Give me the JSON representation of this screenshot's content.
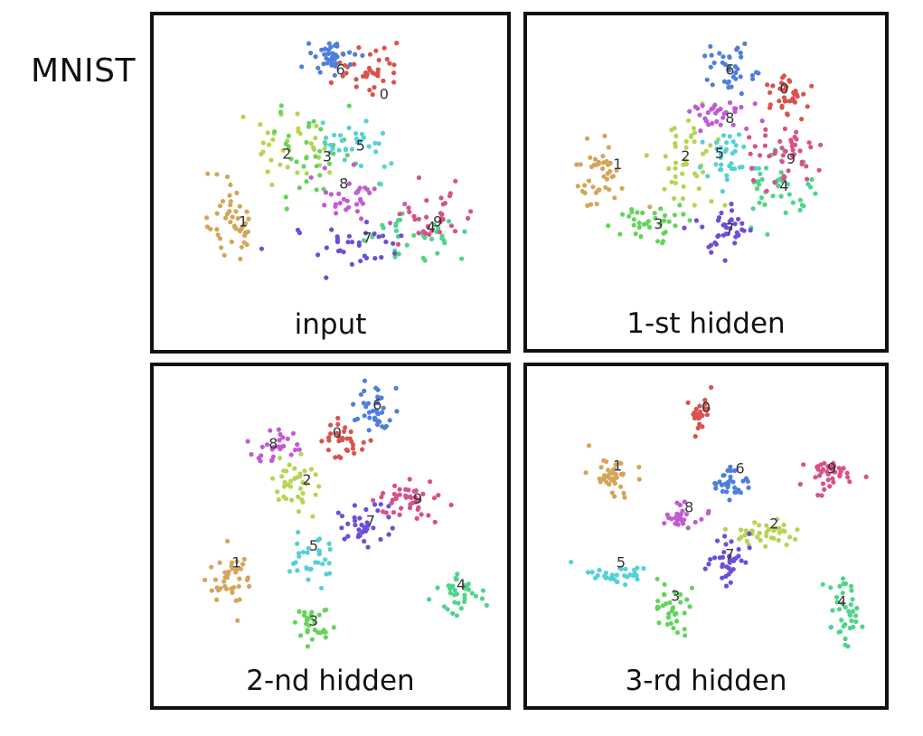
{
  "figure": {
    "title": "MNIST"
  },
  "palette": {
    "0": "#d9534f",
    "1": "#d4a55a",
    "2": "#b5d453",
    "3": "#63d45a",
    "4": "#4fd48a",
    "5": "#55d0d6",
    "6": "#4f7fd9",
    "7": "#6c4fd4",
    "8": "#c25ad4",
    "9": "#d9508a"
  },
  "chart_data": [
    {
      "type": "scatter",
      "title": "input",
      "xlim": [
        0,
        100
      ],
      "ylim": [
        0,
        100
      ],
      "clusters": [
        {
          "label": "0",
          "center": [
            62,
            17
          ],
          "spread": [
            6,
            5
          ],
          "n": 36
        },
        {
          "label": "1",
          "center": [
            21,
            72
          ],
          "spread": [
            4,
            9
          ],
          "n": 45
        },
        {
          "label": "2",
          "center": [
            37,
            45
          ],
          "spread": [
            7,
            7
          ],
          "n": 34
        },
        {
          "label": "3",
          "center": [
            45,
            46
          ],
          "spread": [
            8,
            9
          ],
          "n": 34
        },
        {
          "label": "4",
          "center": [
            77,
            78
          ],
          "spread": [
            10,
            5
          ],
          "n": 34
        },
        {
          "label": "5",
          "center": [
            57,
            43
          ],
          "spread": [
            6,
            6
          ],
          "n": 32
        },
        {
          "label": "6",
          "center": [
            50,
            11
          ],
          "spread": [
            5,
            5
          ],
          "n": 38
        },
        {
          "label": "7",
          "center": [
            57,
            81
          ],
          "spread": [
            10,
            5
          ],
          "n": 34
        },
        {
          "label": "8",
          "center": [
            55,
            63
          ],
          "spread": [
            8,
            6
          ],
          "n": 32
        },
        {
          "label": "9",
          "center": [
            82,
            71
          ],
          "spread": [
            6,
            6
          ],
          "n": 32
        }
      ],
      "labels": [
        {
          "text": "0",
          "pos": [
            66,
            26
          ]
        },
        {
          "text": "1",
          "pos": [
            24,
            73
          ]
        },
        {
          "text": "2",
          "pos": [
            37,
            48
          ]
        },
        {
          "text": "3",
          "pos": [
            49,
            49
          ]
        },
        {
          "text": "4",
          "pos": [
            80,
            75
          ]
        },
        {
          "text": "5",
          "pos": [
            59,
            45
          ]
        },
        {
          "text": "6",
          "pos": [
            53,
            17
          ]
        },
        {
          "text": "7",
          "pos": [
            61,
            79
          ]
        },
        {
          "text": "8",
          "pos": [
            54,
            59
          ]
        },
        {
          "text": "9",
          "pos": [
            82,
            73
          ]
        }
      ]
    },
    {
      "type": "scatter",
      "title": "1-st hidden",
      "xlim": [
        0,
        100
      ],
      "ylim": [
        0,
        100
      ],
      "clusters": [
        {
          "label": "0",
          "center": [
            74,
            26
          ],
          "spread": [
            5,
            5
          ],
          "n": 36
        },
        {
          "label": "1",
          "center": [
            19,
            56
          ],
          "spread": [
            5,
            8
          ],
          "n": 42
        },
        {
          "label": "2",
          "center": [
            44,
            52
          ],
          "spread": [
            6,
            11
          ],
          "n": 42
        },
        {
          "label": "3",
          "center": [
            33,
            74
          ],
          "spread": [
            6,
            5
          ],
          "n": 36
        },
        {
          "label": "4",
          "center": [
            71,
            61
          ],
          "spread": [
            5,
            7
          ],
          "n": 42
        },
        {
          "label": "5",
          "center": [
            56,
            49
          ],
          "spread": [
            5,
            6
          ],
          "n": 36
        },
        {
          "label": "6",
          "center": [
            57,
            17
          ],
          "spread": [
            5,
            6
          ],
          "n": 36
        },
        {
          "label": "7",
          "center": [
            56,
            77
          ],
          "spread": [
            5,
            5
          ],
          "n": 36
        },
        {
          "label": "8",
          "center": [
            55,
            34
          ],
          "spread": [
            6,
            4
          ],
          "n": 32
        },
        {
          "label": "9",
          "center": [
            74,
            48
          ],
          "spread": [
            6,
            6
          ],
          "n": 42
        }
      ],
      "labels": [
        {
          "text": "0",
          "pos": [
            73,
            24
          ]
        },
        {
          "text": "1",
          "pos": [
            24,
            52
          ]
        },
        {
          "text": "2",
          "pos": [
            44,
            49
          ]
        },
        {
          "text": "3",
          "pos": [
            36,
            74
          ]
        },
        {
          "text": "4",
          "pos": [
            73,
            60
          ]
        },
        {
          "text": "5",
          "pos": [
            54,
            48
          ]
        },
        {
          "text": "6",
          "pos": [
            57,
            17
          ]
        },
        {
          "text": "7",
          "pos": [
            57,
            76
          ]
        },
        {
          "text": "8",
          "pos": [
            57,
            35
          ]
        },
        {
          "text": "9",
          "pos": [
            75,
            50
          ]
        }
      ]
    },
    {
      "type": "scatter",
      "title": "2-nd hidden",
      "xlim": [
        0,
        100
      ],
      "ylim": [
        0,
        100
      ],
      "clusters": [
        {
          "label": "0",
          "center": [
            53,
            24
          ],
          "spread": [
            4,
            4
          ],
          "n": 30
        },
        {
          "label": "1",
          "center": [
            20,
            73
          ],
          "spread": [
            4,
            7
          ],
          "n": 40
        },
        {
          "label": "2",
          "center": [
            40,
            38
          ],
          "spread": [
            4,
            5
          ],
          "n": 36
        },
        {
          "label": "3",
          "center": [
            45,
            91
          ],
          "spread": [
            4,
            4
          ],
          "n": 28
        },
        {
          "label": "4",
          "center": [
            88,
            80
          ],
          "spread": [
            5,
            4
          ],
          "n": 36
        },
        {
          "label": "5",
          "center": [
            45,
            67
          ],
          "spread": [
            4,
            5
          ],
          "n": 32
        },
        {
          "label": "6",
          "center": [
            63,
            12
          ],
          "spread": [
            3,
            5
          ],
          "n": 36
        },
        {
          "label": "7",
          "center": [
            60,
            55
          ],
          "spread": [
            5,
            5
          ],
          "n": 36
        },
        {
          "label": "8",
          "center": [
            33,
            26
          ],
          "spread": [
            4,
            4
          ],
          "n": 28
        },
        {
          "label": "9",
          "center": [
            74,
            46
          ],
          "spread": [
            6,
            4
          ],
          "n": 44
        }
      ],
      "labels": [
        {
          "text": "0",
          "pos": [
            52,
            21
          ]
        },
        {
          "text": "1",
          "pos": [
            22,
            68
          ]
        },
        {
          "text": "2",
          "pos": [
            43,
            38
          ]
        },
        {
          "text": "3",
          "pos": [
            45,
            89
          ]
        },
        {
          "text": "4",
          "pos": [
            89,
            76
          ]
        },
        {
          "text": "5",
          "pos": [
            45,
            62
          ]
        },
        {
          "text": "6",
          "pos": [
            64,
            11
          ]
        },
        {
          "text": "7",
          "pos": [
            62,
            53
          ]
        },
        {
          "text": "8",
          "pos": [
            33,
            25
          ]
        },
        {
          "text": "9",
          "pos": [
            76,
            45
          ]
        }
      ]
    },
    {
      "type": "scatter",
      "title": "3-rd hidden",
      "xlim": [
        0,
        100
      ],
      "ylim": [
        0,
        100
      ],
      "clusters": [
        {
          "label": "0",
          "center": [
            49,
            14
          ],
          "spread": [
            2,
            4
          ],
          "n": 26
        },
        {
          "label": "1",
          "center": [
            23,
            36
          ],
          "spread": [
            4,
            5
          ],
          "n": 38
        },
        {
          "label": "2",
          "center": [
            67,
            57
          ],
          "spread": [
            7,
            3
          ],
          "n": 38
        },
        {
          "label": "3",
          "center": [
            40,
            85
          ],
          "spread": [
            4,
            5
          ],
          "n": 34
        },
        {
          "label": "4",
          "center": [
            90,
            86
          ],
          "spread": [
            3,
            8
          ],
          "n": 38
        },
        {
          "label": "5",
          "center": [
            23,
            72
          ],
          "spread": [
            6,
            2
          ],
          "n": 32
        },
        {
          "label": "6",
          "center": [
            58,
            39
          ],
          "spread": [
            3,
            4
          ],
          "n": 30
        },
        {
          "label": "7",
          "center": [
            57,
            68
          ],
          "spread": [
            3,
            5
          ],
          "n": 36
        },
        {
          "label": "8",
          "center": [
            42,
            51
          ],
          "spread": [
            4,
            3
          ],
          "n": 26
        },
        {
          "label": "9",
          "center": [
            86,
            36
          ],
          "spread": [
            6,
            3
          ],
          "n": 38
        }
      ],
      "labels": [
        {
          "text": "0",
          "pos": [
            50,
            12
          ]
        },
        {
          "text": "1",
          "pos": [
            24,
            33
          ]
        },
        {
          "text": "2",
          "pos": [
            70,
            54
          ]
        },
        {
          "text": "3",
          "pos": [
            41,
            80
          ]
        },
        {
          "text": "4",
          "pos": [
            90,
            82
          ]
        },
        {
          "text": "5",
          "pos": [
            25,
            68
          ]
        },
        {
          "text": "6",
          "pos": [
            60,
            34
          ]
        },
        {
          "text": "7",
          "pos": [
            57,
            65
          ]
        },
        {
          "text": "8",
          "pos": [
            45,
            48
          ]
        },
        {
          "text": "9",
          "pos": [
            87,
            34
          ]
        }
      ]
    }
  ]
}
